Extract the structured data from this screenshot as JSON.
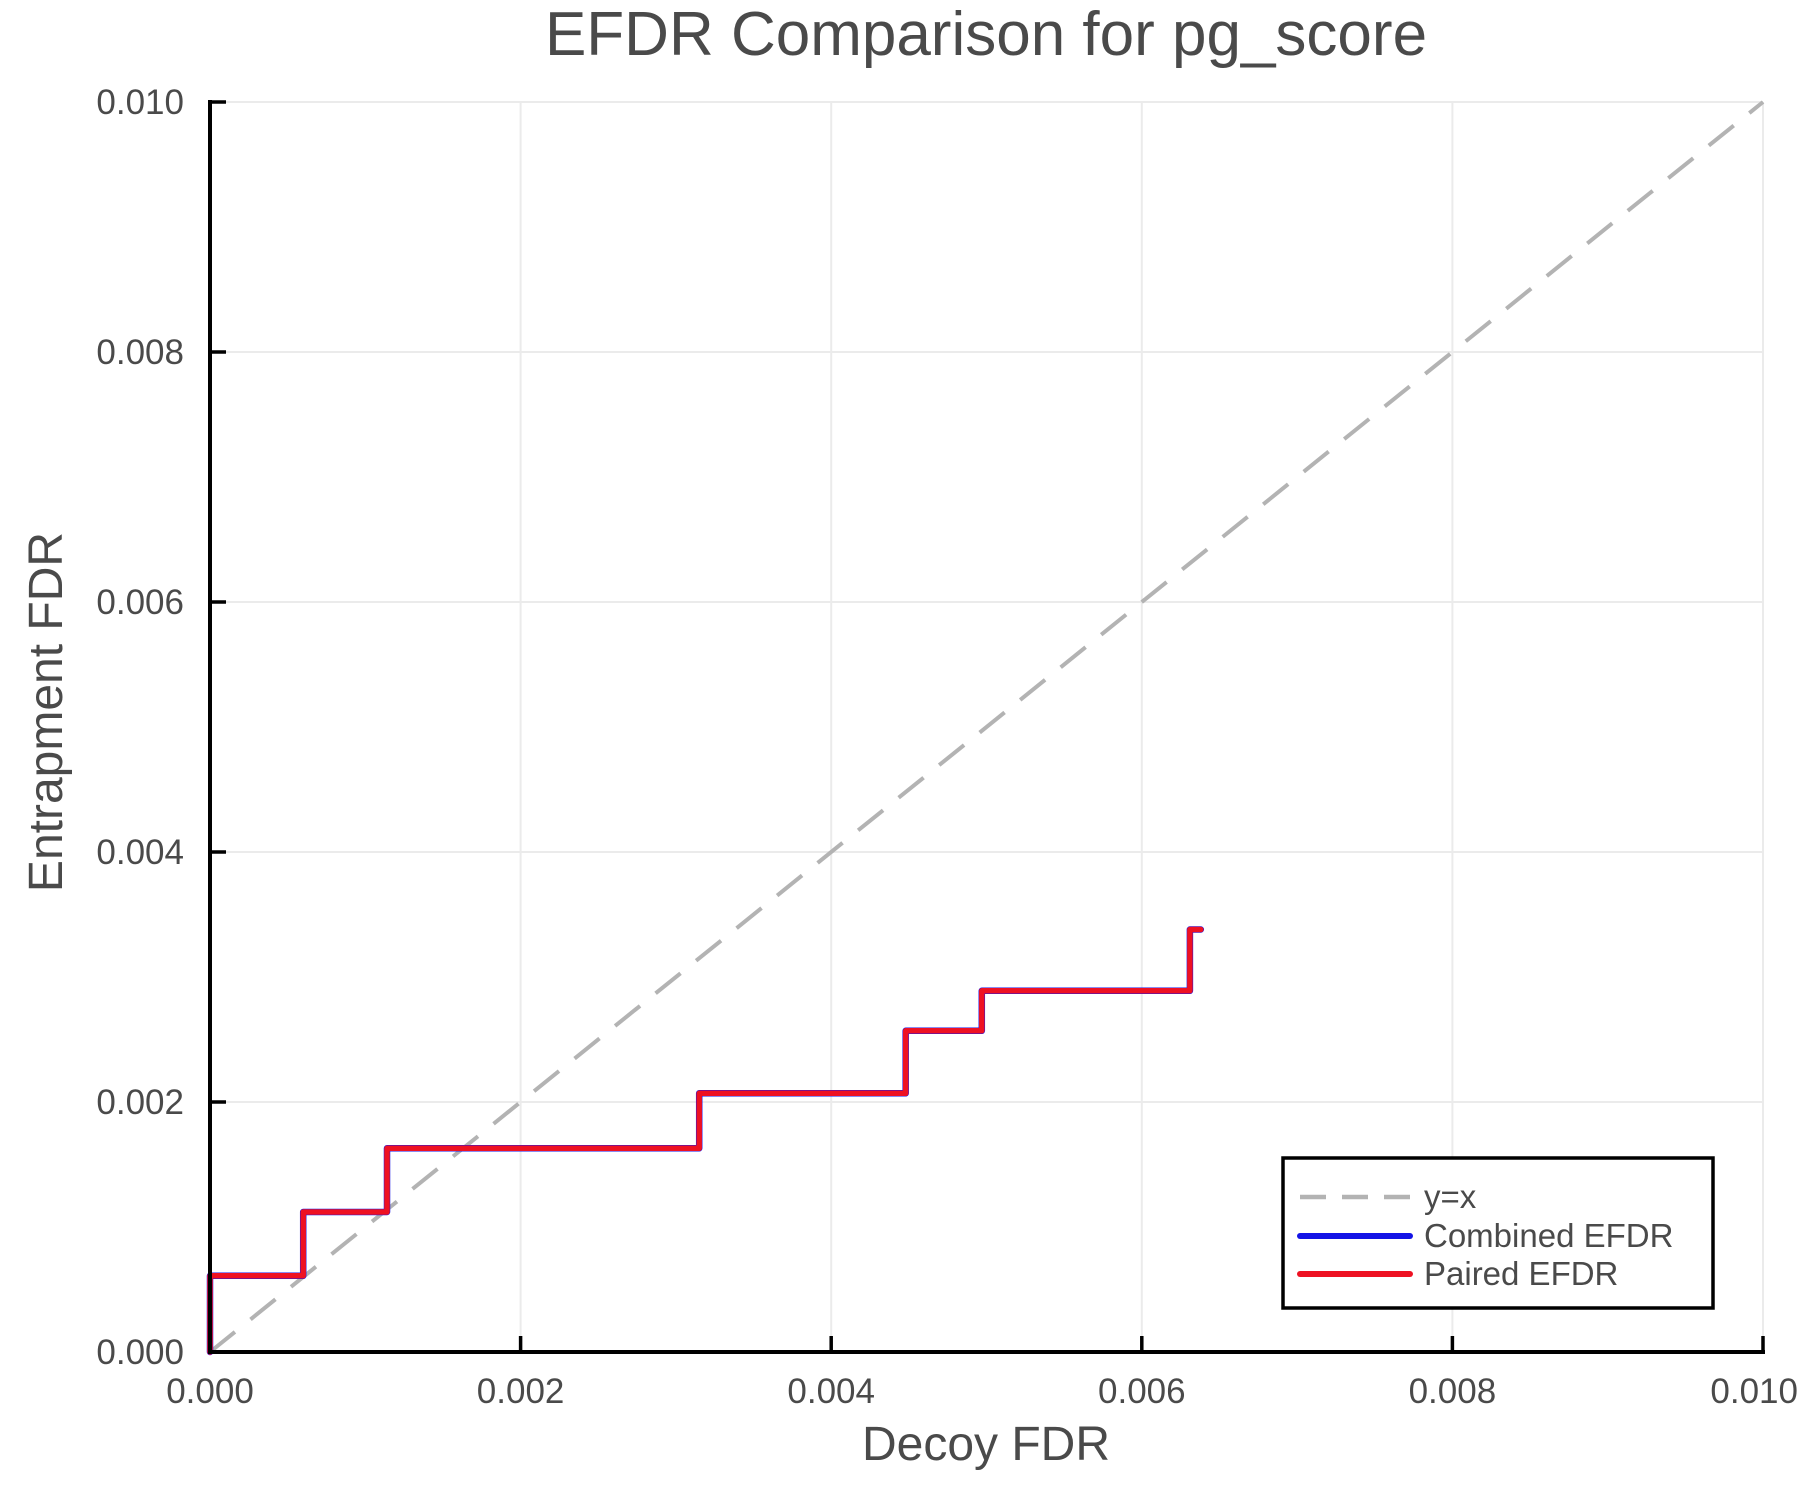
{
  "title": "EFDR Comparison for pg_score",
  "axes": {
    "x": {
      "label": "Decoy FDR",
      "range": [
        0,
        0.01
      ],
      "tick_values": [
        0,
        0.002,
        0.004,
        0.006,
        0.008,
        0.01
      ],
      "tick_labels": [
        "0.000",
        "0.002",
        "0.004",
        "0.006",
        "0.008",
        "0.010"
      ]
    },
    "y": {
      "label": "Entrapment FDR",
      "range": [
        0,
        0.01
      ],
      "tick_values": [
        0,
        0.002,
        0.004,
        0.006,
        0.008,
        0.01
      ],
      "tick_labels": [
        "0.000",
        "0.002",
        "0.004",
        "0.006",
        "0.008",
        "0.010"
      ]
    }
  },
  "legend": {
    "position": "lower right",
    "entries": [
      {
        "label": "y=x",
        "color": "#b3b3b3",
        "dashed": true
      },
      {
        "label": "Combined EFDR",
        "color": "#1414e6",
        "dashed": false
      },
      {
        "label": "Paired EFDR",
        "color": "#ee1122",
        "dashed": false
      }
    ]
  },
  "colors": {
    "background": "#ffffff",
    "text": "#4a4a4a",
    "spine": "#000000",
    "grid": "#ebebeb",
    "identity": "#b3b3b3",
    "combined": "#1414e6",
    "paired": "#ee1122"
  },
  "chart_data": {
    "type": "line",
    "title": "EFDR Comparison for pg_score",
    "xlabel": "Decoy FDR",
    "ylabel": "Entrapment FDR",
    "xlim": [
      0,
      0.01
    ],
    "ylim": [
      0,
      0.01
    ],
    "grid": true,
    "legend_position": "lower right",
    "identity_line": {
      "name": "y=x",
      "style": "dashed",
      "points": [
        [
          0,
          0
        ],
        [
          0.01,
          0.01
        ]
      ]
    },
    "series": [
      {
        "name": "Combined EFDR",
        "color": "#1414e6",
        "style": "solid",
        "points": [
          [
            0.0,
            0.0
          ],
          [
            0.0,
            0.00061
          ],
          [
            0.0006,
            0.00061
          ],
          [
            0.0006,
            0.00112
          ],
          [
            0.00114,
            0.00112
          ],
          [
            0.00114,
            0.00163
          ],
          [
            0.00315,
            0.00163
          ],
          [
            0.00315,
            0.00207
          ],
          [
            0.00448,
            0.00207
          ],
          [
            0.00448,
            0.00257
          ],
          [
            0.00497,
            0.00257
          ],
          [
            0.00497,
            0.00289
          ],
          [
            0.00631,
            0.00289
          ],
          [
            0.00631,
            0.00338
          ],
          [
            0.00638,
            0.00338
          ]
        ]
      },
      {
        "name": "Paired EFDR",
        "color": "#ee1122",
        "style": "solid",
        "points": [
          [
            0.0,
            0.0
          ],
          [
            0.0,
            0.00061
          ],
          [
            0.0006,
            0.00061
          ],
          [
            0.0006,
            0.00112
          ],
          [
            0.00114,
            0.00112
          ],
          [
            0.00114,
            0.00163
          ],
          [
            0.00315,
            0.00163
          ],
          [
            0.00315,
            0.00207
          ],
          [
            0.00448,
            0.00207
          ],
          [
            0.00448,
            0.00257
          ],
          [
            0.00497,
            0.00257
          ],
          [
            0.00497,
            0.00289
          ],
          [
            0.00631,
            0.00289
          ],
          [
            0.00631,
            0.00338
          ],
          [
            0.00638,
            0.00338
          ]
        ]
      }
    ]
  }
}
